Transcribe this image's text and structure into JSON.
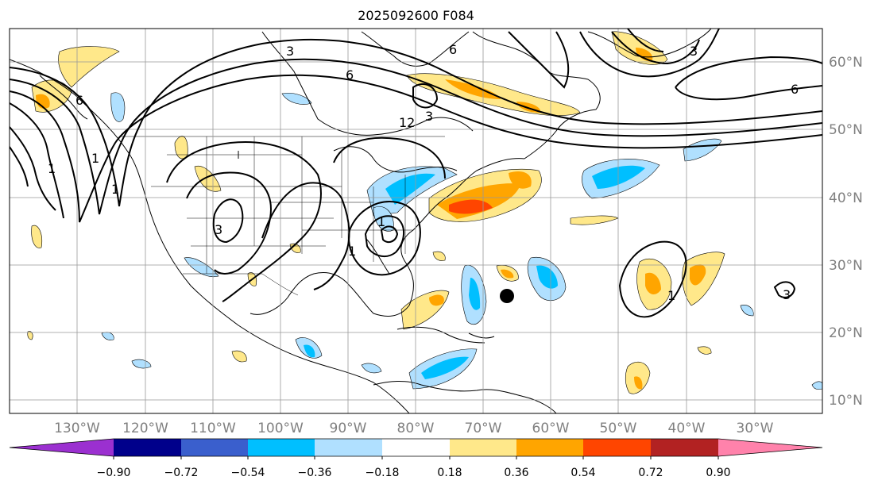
{
  "title": "2025092600 F084",
  "longitude_labels": [
    "130°W",
    "120°W",
    "110°W",
    "100°W",
    "90°W",
    "80°W",
    "70°W",
    "60°W",
    "50°W",
    "40°W",
    "30°W"
  ],
  "latitude_labels": [
    "60°N",
    "50°N",
    "40°N",
    "30°N",
    "20°N",
    "10°N"
  ],
  "colorbar": {
    "ticks": [
      "−0.90",
      "−0.72",
      "−0.54",
      "−0.36",
      "−0.18",
      "0.18",
      "0.36",
      "0.54",
      "0.72",
      "0.90"
    ],
    "colors": [
      "#9b30d0",
      "#00008b",
      "#3a5fcd",
      "#00bfff",
      "#b0e0ff",
      "#ffffff",
      "#ffe88a",
      "#ffa500",
      "#ff4500",
      "#b22222",
      "#ff82ab"
    ]
  },
  "contour_labels": [
    "6",
    "3",
    "6",
    "12",
    "3",
    "1",
    "3",
    "3",
    "1",
    "1",
    "1",
    "1",
    "6",
    "3",
    "6",
    "1"
  ],
  "marker": "storm-position"
}
